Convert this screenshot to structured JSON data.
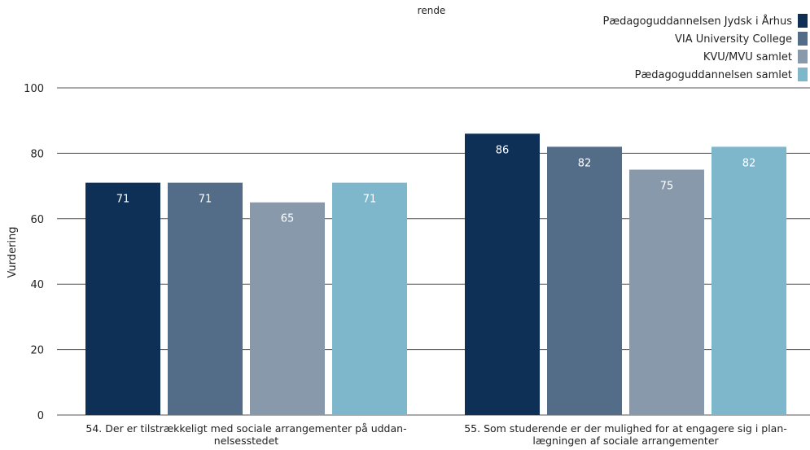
{
  "top_text": "rende",
  "chart_data": {
    "type": "bar",
    "ylabel": "Vurdering",
    "ylim": [
      0,
      100
    ],
    "yticks": [
      0,
      20,
      40,
      60,
      80,
      100
    ],
    "grid": true,
    "legend_position": "top-right",
    "categories": [
      [
        "54. Der er tilstrækkeligt med sociale arrangementer på uddan-",
        "nelsesstedet"
      ],
      [
        "55. Som studerende er der mulighed for at engagere sig i plan-",
        "lægningen af sociale arrangementer"
      ]
    ],
    "series": [
      {
        "name": "Pædagoguddannelsen Jydsk i Århus",
        "color": "#0e2f56",
        "values": [
          71,
          86
        ]
      },
      {
        "name": "VIA University College",
        "color": "#536c88",
        "values": [
          71,
          82
        ]
      },
      {
        "name": "KVU/MVU samlet",
        "color": "#8899ab",
        "values": [
          65,
          75
        ]
      },
      {
        "name": "Pædagoguddannelsen samlet",
        "color": "#7eb7cc",
        "values": [
          71,
          82
        ]
      }
    ]
  }
}
